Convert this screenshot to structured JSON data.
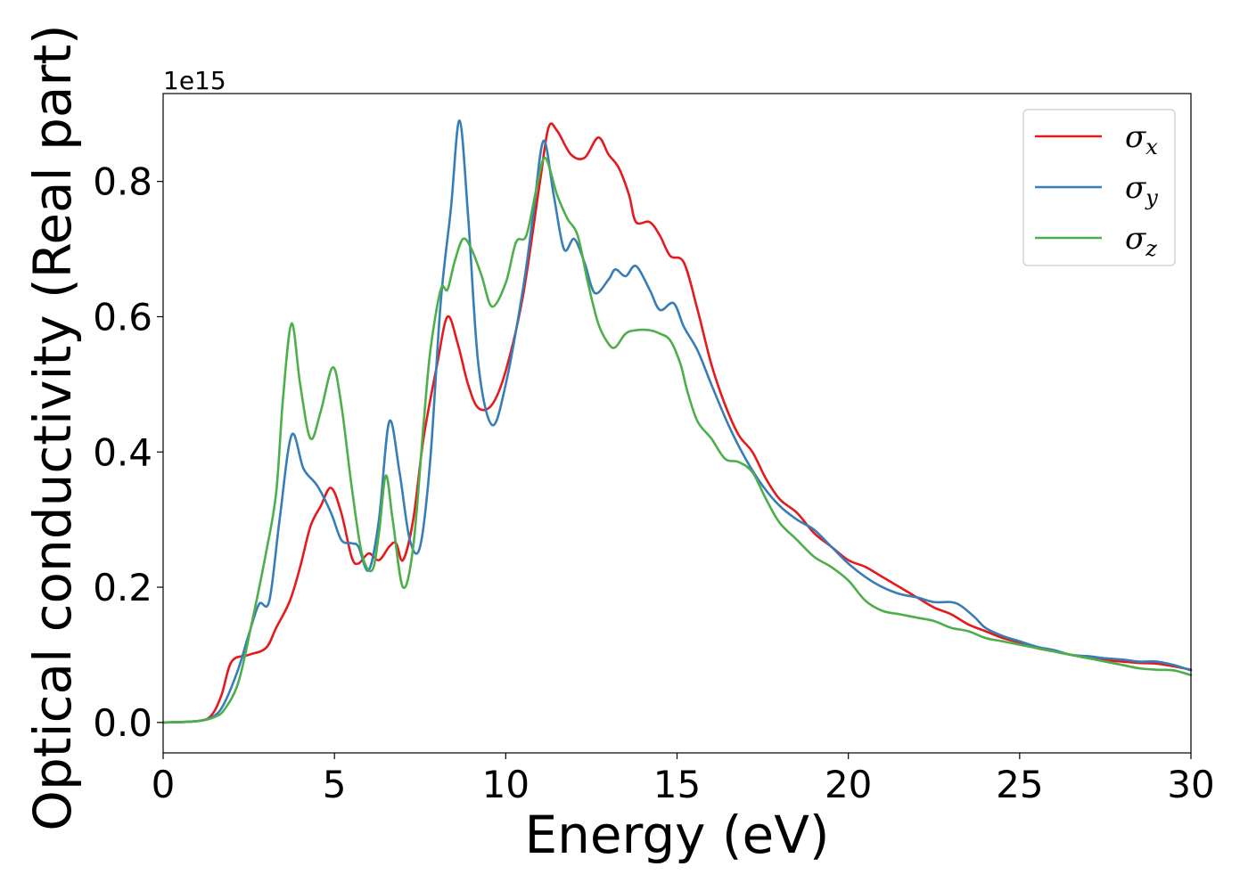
{
  "chart_data": {
    "type": "line",
    "xlabel": "Energy (eV)",
    "ylabel": "Optical conductivity (Real part)",
    "y_offset_text": "1e15",
    "xlim": [
      0,
      30
    ],
    "ylim": [
      -0.045,
      0.93
    ],
    "x_ticks": [
      0,
      5,
      10,
      15,
      20,
      25,
      30
    ],
    "x_tick_labels": [
      "0",
      "5",
      "10",
      "15",
      "20",
      "25",
      "30"
    ],
    "y_ticks": [
      0.0,
      0.2,
      0.4,
      0.6,
      0.8
    ],
    "y_tick_labels": [
      "0.0",
      "0.2",
      "0.4",
      "0.6",
      "0.8"
    ],
    "grid": false,
    "legend_position": "top-right",
    "series": [
      {
        "name": "σx",
        "legend_base": "σ",
        "legend_sub": "x",
        "color": "#e41a1c",
        "points": [
          [
            0,
            0
          ],
          [
            1.0,
            0.002
          ],
          [
            1.4,
            0.01
          ],
          [
            1.7,
            0.04
          ],
          [
            2.0,
            0.09
          ],
          [
            2.5,
            0.1
          ],
          [
            3.0,
            0.11
          ],
          [
            3.3,
            0.14
          ],
          [
            3.7,
            0.18
          ],
          [
            4.0,
            0.23
          ],
          [
            4.3,
            0.29
          ],
          [
            4.6,
            0.32
          ],
          [
            4.9,
            0.347
          ],
          [
            5.2,
            0.31
          ],
          [
            5.5,
            0.245
          ],
          [
            5.7,
            0.235
          ],
          [
            6.0,
            0.25
          ],
          [
            6.3,
            0.24
          ],
          [
            6.6,
            0.26
          ],
          [
            6.8,
            0.265
          ],
          [
            7.0,
            0.24
          ],
          [
            7.3,
            0.3
          ],
          [
            7.6,
            0.42
          ],
          [
            8.0,
            0.53
          ],
          [
            8.3,
            0.6
          ],
          [
            8.6,
            0.56
          ],
          [
            8.9,
            0.5
          ],
          [
            9.2,
            0.465
          ],
          [
            9.6,
            0.47
          ],
          [
            10.0,
            0.52
          ],
          [
            10.5,
            0.63
          ],
          [
            11.0,
            0.8
          ],
          [
            11.25,
            0.88
          ],
          [
            11.5,
            0.875
          ],
          [
            11.9,
            0.84
          ],
          [
            12.3,
            0.835
          ],
          [
            12.7,
            0.865
          ],
          [
            13.0,
            0.84
          ],
          [
            13.3,
            0.82
          ],
          [
            13.6,
            0.78
          ],
          [
            13.8,
            0.74
          ],
          [
            14.2,
            0.74
          ],
          [
            14.5,
            0.72
          ],
          [
            14.8,
            0.69
          ],
          [
            15.2,
            0.68
          ],
          [
            15.6,
            0.61
          ],
          [
            16.0,
            0.53
          ],
          [
            16.4,
            0.47
          ],
          [
            16.8,
            0.425
          ],
          [
            17.2,
            0.4
          ],
          [
            17.6,
            0.36
          ],
          [
            18.0,
            0.33
          ],
          [
            18.5,
            0.31
          ],
          [
            19.0,
            0.28
          ],
          [
            19.5,
            0.26
          ],
          [
            20.0,
            0.24
          ],
          [
            20.5,
            0.23
          ],
          [
            21.0,
            0.215
          ],
          [
            21.5,
            0.2
          ],
          [
            22.0,
            0.185
          ],
          [
            22.5,
            0.17
          ],
          [
            23.0,
            0.16
          ],
          [
            23.5,
            0.145
          ],
          [
            24.0,
            0.135
          ],
          [
            24.5,
            0.125
          ],
          [
            25.0,
            0.118
          ],
          [
            25.5,
            0.11
          ],
          [
            26.0,
            0.105
          ],
          [
            26.5,
            0.1
          ],
          [
            27.0,
            0.095
          ],
          [
            27.5,
            0.092
          ],
          [
            28.0,
            0.09
          ],
          [
            28.5,
            0.088
          ],
          [
            29.0,
            0.087
          ],
          [
            29.5,
            0.083
          ],
          [
            30.0,
            0.078
          ]
        ]
      },
      {
        "name": "σy",
        "legend_base": "σ",
        "legend_sub": "y",
        "color": "#377eb8",
        "points": [
          [
            0,
            0
          ],
          [
            1.0,
            0.002
          ],
          [
            1.5,
            0.01
          ],
          [
            1.8,
            0.03
          ],
          [
            2.2,
            0.08
          ],
          [
            2.5,
            0.13
          ],
          [
            2.8,
            0.175
          ],
          [
            3.1,
            0.18
          ],
          [
            3.4,
            0.3
          ],
          [
            3.75,
            0.425
          ],
          [
            4.1,
            0.375
          ],
          [
            4.5,
            0.35
          ],
          [
            4.9,
            0.31
          ],
          [
            5.2,
            0.27
          ],
          [
            5.5,
            0.265
          ],
          [
            5.7,
            0.26
          ],
          [
            6.0,
            0.225
          ],
          [
            6.3,
            0.3
          ],
          [
            6.6,
            0.445
          ],
          [
            6.9,
            0.37
          ],
          [
            7.2,
            0.27
          ],
          [
            7.5,
            0.26
          ],
          [
            7.8,
            0.39
          ],
          [
            8.1,
            0.62
          ],
          [
            8.4,
            0.76
          ],
          [
            8.65,
            0.89
          ],
          [
            8.9,
            0.75
          ],
          [
            9.2,
            0.53
          ],
          [
            9.6,
            0.44
          ],
          [
            10.0,
            0.5
          ],
          [
            10.5,
            0.64
          ],
          [
            10.8,
            0.75
          ],
          [
            11.1,
            0.86
          ],
          [
            11.4,
            0.78
          ],
          [
            11.7,
            0.7
          ],
          [
            12.0,
            0.715
          ],
          [
            12.3,
            0.68
          ],
          [
            12.6,
            0.635
          ],
          [
            13.0,
            0.655
          ],
          [
            13.2,
            0.67
          ],
          [
            13.5,
            0.66
          ],
          [
            13.8,
            0.675
          ],
          [
            14.2,
            0.64
          ],
          [
            14.5,
            0.61
          ],
          [
            14.9,
            0.62
          ],
          [
            15.2,
            0.585
          ],
          [
            15.6,
            0.55
          ],
          [
            16.0,
            0.5
          ],
          [
            16.5,
            0.44
          ],
          [
            17.0,
            0.39
          ],
          [
            17.5,
            0.35
          ],
          [
            18.0,
            0.32
          ],
          [
            18.5,
            0.3
          ],
          [
            19.0,
            0.285
          ],
          [
            19.5,
            0.26
          ],
          [
            20.0,
            0.235
          ],
          [
            20.5,
            0.215
          ],
          [
            21.0,
            0.2
          ],
          [
            21.5,
            0.19
          ],
          [
            22.0,
            0.185
          ],
          [
            22.5,
            0.178
          ],
          [
            23.0,
            0.178
          ],
          [
            23.3,
            0.172
          ],
          [
            23.7,
            0.155
          ],
          [
            24.0,
            0.14
          ],
          [
            24.5,
            0.128
          ],
          [
            25.0,
            0.12
          ],
          [
            25.5,
            0.112
          ],
          [
            26.0,
            0.107
          ],
          [
            26.5,
            0.1
          ],
          [
            27.0,
            0.098
          ],
          [
            27.5,
            0.095
          ],
          [
            28.0,
            0.093
          ],
          [
            28.5,
            0.09
          ],
          [
            29.0,
            0.09
          ],
          [
            29.5,
            0.085
          ],
          [
            30.0,
            0.077
          ]
        ]
      },
      {
        "name": "σz",
        "legend_base": "σ",
        "legend_sub": "z",
        "color": "#4daf4a",
        "points": [
          [
            0,
            0
          ],
          [
            1.0,
            0.002
          ],
          [
            1.5,
            0.008
          ],
          [
            1.8,
            0.02
          ],
          [
            2.2,
            0.06
          ],
          [
            2.6,
            0.15
          ],
          [
            3.0,
            0.25
          ],
          [
            3.3,
            0.34
          ],
          [
            3.5,
            0.48
          ],
          [
            3.75,
            0.59
          ],
          [
            4.0,
            0.5
          ],
          [
            4.3,
            0.42
          ],
          [
            4.6,
            0.46
          ],
          [
            4.95,
            0.525
          ],
          [
            5.2,
            0.47
          ],
          [
            5.5,
            0.35
          ],
          [
            5.8,
            0.25
          ],
          [
            6.1,
            0.225
          ],
          [
            6.3,
            0.28
          ],
          [
            6.5,
            0.365
          ],
          [
            6.7,
            0.3
          ],
          [
            7.0,
            0.2
          ],
          [
            7.3,
            0.26
          ],
          [
            7.6,
            0.44
          ],
          [
            7.8,
            0.55
          ],
          [
            8.1,
            0.64
          ],
          [
            8.3,
            0.64
          ],
          [
            8.5,
            0.68
          ],
          [
            8.75,
            0.715
          ],
          [
            9.0,
            0.7
          ],
          [
            9.3,
            0.66
          ],
          [
            9.6,
            0.615
          ],
          [
            10.0,
            0.65
          ],
          [
            10.3,
            0.71
          ],
          [
            10.6,
            0.72
          ],
          [
            10.9,
            0.79
          ],
          [
            11.15,
            0.835
          ],
          [
            11.5,
            0.78
          ],
          [
            11.8,
            0.745
          ],
          [
            12.1,
            0.72
          ],
          [
            12.4,
            0.65
          ],
          [
            12.7,
            0.59
          ],
          [
            13.0,
            0.56
          ],
          [
            13.2,
            0.555
          ],
          [
            13.5,
            0.575
          ],
          [
            13.8,
            0.58
          ],
          [
            14.2,
            0.58
          ],
          [
            14.5,
            0.575
          ],
          [
            14.8,
            0.565
          ],
          [
            15.1,
            0.53
          ],
          [
            15.3,
            0.49
          ],
          [
            15.6,
            0.445
          ],
          [
            16.0,
            0.42
          ],
          [
            16.4,
            0.39
          ],
          [
            16.8,
            0.385
          ],
          [
            17.2,
            0.37
          ],
          [
            17.6,
            0.33
          ],
          [
            18.0,
            0.295
          ],
          [
            18.5,
            0.27
          ],
          [
            19.0,
            0.245
          ],
          [
            19.5,
            0.23
          ],
          [
            20.0,
            0.21
          ],
          [
            20.5,
            0.18
          ],
          [
            21.0,
            0.165
          ],
          [
            21.5,
            0.16
          ],
          [
            22.0,
            0.155
          ],
          [
            22.5,
            0.15
          ],
          [
            23.0,
            0.14
          ],
          [
            23.5,
            0.135
          ],
          [
            24.0,
            0.125
          ],
          [
            24.5,
            0.12
          ],
          [
            25.0,
            0.115
          ],
          [
            25.5,
            0.11
          ],
          [
            26.0,
            0.105
          ],
          [
            26.5,
            0.1
          ],
          [
            27.0,
            0.095
          ],
          [
            27.5,
            0.09
          ],
          [
            28.0,
            0.085
          ],
          [
            28.5,
            0.08
          ],
          [
            29.0,
            0.078
          ],
          [
            29.5,
            0.077
          ],
          [
            30.0,
            0.07
          ]
        ]
      }
    ]
  }
}
